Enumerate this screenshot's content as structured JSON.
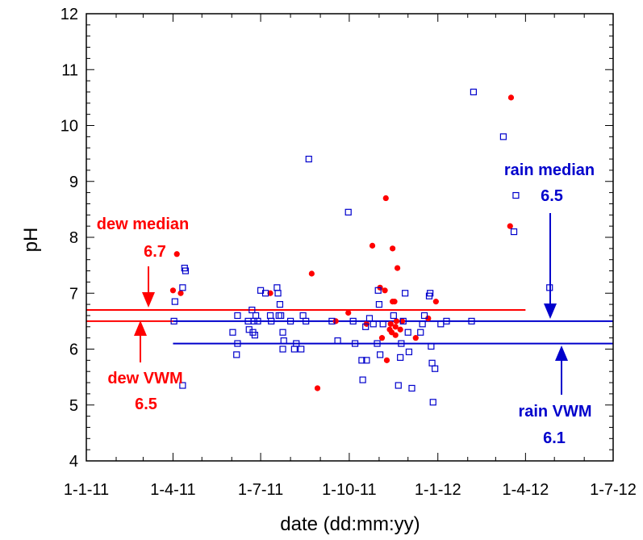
{
  "chart_data": {
    "type": "scatter",
    "xlabel": "date (dd:mm:yy)",
    "ylabel": "pH",
    "xlim": [
      "2011-01-01",
      "2012-07-01"
    ],
    "ylim": [
      4,
      12
    ],
    "x_ticks": [
      "1-1-11",
      "1-4-11",
      "1-7-11",
      "1-10-11",
      "1-1-12",
      "1-4-12",
      "1-7-12"
    ],
    "y_ticks": [
      4,
      5,
      6,
      7,
      8,
      9,
      10,
      11,
      12
    ],
    "grid": false,
    "colors": {
      "dew": "#ff0000",
      "rain": "#0000cc",
      "axis": "#000000"
    },
    "series": [
      {
        "marker": "filled-circle",
        "color": "#ff0000",
        "points": [
          [
            "2011-04-01",
            7.05
          ],
          [
            "2011-04-05",
            7.7
          ],
          [
            "2011-04-09",
            7.0
          ],
          [
            "2011-07-11",
            7.0
          ],
          [
            "2011-08-23",
            7.35
          ],
          [
            "2011-08-29",
            5.3
          ],
          [
            "2011-09-17",
            6.5
          ],
          [
            "2011-09-30",
            6.65
          ],
          [
            "2011-10-19",
            6.45
          ],
          [
            "2011-10-25",
            7.85
          ],
          [
            "2011-11-02",
            7.1
          ],
          [
            "2011-11-04",
            6.2
          ],
          [
            "2011-11-07",
            7.05
          ],
          [
            "2011-11-08",
            8.7
          ],
          [
            "2011-11-09",
            5.8
          ],
          [
            "2011-11-12",
            6.35
          ],
          [
            "2011-11-13",
            6.45
          ],
          [
            "2011-11-14",
            6.3
          ],
          [
            "2011-11-15",
            7.8
          ],
          [
            "2011-11-15",
            6.85
          ],
          [
            "2011-11-17",
            6.85
          ],
          [
            "2011-11-18",
            6.4
          ],
          [
            "2011-11-18",
            6.25
          ],
          [
            "2011-11-19",
            6.5
          ],
          [
            "2011-11-20",
            7.45
          ],
          [
            "2011-11-23",
            6.35
          ],
          [
            "2011-11-25",
            6.5
          ],
          [
            "2011-12-09",
            6.2
          ],
          [
            "2011-12-22",
            6.55
          ],
          [
            "2011-12-30",
            6.85
          ],
          [
            "2012-03-16",
            8.2
          ],
          [
            "2012-03-17",
            10.5
          ]
        ]
      },
      {
        "marker": "open-square",
        "color": "#0000cc",
        "points": [
          [
            "2011-04-02",
            6.5
          ],
          [
            "2011-04-03",
            6.85
          ],
          [
            "2011-04-11",
            7.1
          ],
          [
            "2011-04-13",
            7.45
          ],
          [
            "2011-04-14",
            7.4
          ],
          [
            "2011-04-11",
            5.35
          ],
          [
            "2011-06-02",
            6.3
          ],
          [
            "2011-06-06",
            5.9
          ],
          [
            "2011-06-07",
            6.1
          ],
          [
            "2011-06-07",
            6.6
          ],
          [
            "2011-06-18",
            6.5
          ],
          [
            "2011-06-19",
            6.35
          ],
          [
            "2011-06-22",
            6.7
          ],
          [
            "2011-06-23",
            6.3
          ],
          [
            "2011-06-24",
            6.5
          ],
          [
            "2011-06-25",
            6.25
          ],
          [
            "2011-06-26",
            6.6
          ],
          [
            "2011-06-28",
            6.5
          ],
          [
            "2011-07-01",
            7.05
          ],
          [
            "2011-07-06",
            7.0
          ],
          [
            "2011-07-11",
            6.6
          ],
          [
            "2011-07-12",
            6.5
          ],
          [
            "2011-07-18",
            7.1
          ],
          [
            "2011-07-19",
            7.0
          ],
          [
            "2011-07-20",
            6.6
          ],
          [
            "2011-07-21",
            6.8
          ],
          [
            "2011-07-22",
            6.6
          ],
          [
            "2011-07-24",
            6.3
          ],
          [
            "2011-07-25",
            6.15
          ],
          [
            "2011-07-24",
            6.0
          ],
          [
            "2011-08-01",
            6.5
          ],
          [
            "2011-08-05",
            6.0
          ],
          [
            "2011-08-07",
            6.1
          ],
          [
            "2011-08-12",
            6.0
          ],
          [
            "2011-08-14",
            6.6
          ],
          [
            "2011-08-17",
            6.5
          ],
          [
            "2011-08-20",
            9.4
          ],
          [
            "2011-09-13",
            6.5
          ],
          [
            "2011-09-19",
            6.15
          ],
          [
            "2011-09-30",
            8.45
          ],
          [
            "2011-10-05",
            6.5
          ],
          [
            "2011-10-07",
            6.1
          ],
          [
            "2011-10-14",
            5.8
          ],
          [
            "2011-10-15",
            5.45
          ],
          [
            "2011-10-18",
            6.4
          ],
          [
            "2011-10-19",
            5.8
          ],
          [
            "2011-10-22",
            6.55
          ],
          [
            "2011-10-26",
            6.45
          ],
          [
            "2011-10-30",
            6.1
          ],
          [
            "2011-10-31",
            7.05
          ],
          [
            "2011-11-01",
            6.8
          ],
          [
            "2011-11-02",
            5.9
          ],
          [
            "2011-11-05",
            6.45
          ],
          [
            "2011-11-16",
            6.6
          ],
          [
            "2011-11-21",
            5.35
          ],
          [
            "2011-11-23",
            5.85
          ],
          [
            "2011-11-24",
            6.1
          ],
          [
            "2011-11-26",
            6.5
          ],
          [
            "2011-11-28",
            7.0
          ],
          [
            "2011-12-01",
            6.3
          ],
          [
            "2011-12-02",
            5.95
          ],
          [
            "2011-12-05",
            5.3
          ],
          [
            "2011-12-14",
            6.3
          ],
          [
            "2011-12-16",
            6.45
          ],
          [
            "2011-12-18",
            6.6
          ],
          [
            "2011-12-23",
            6.95
          ],
          [
            "2011-12-24",
            7.0
          ],
          [
            "2011-12-25",
            6.05
          ],
          [
            "2011-12-26",
            5.75
          ],
          [
            "2011-12-27",
            5.05
          ],
          [
            "2011-12-29",
            5.65
          ],
          [
            "2012-01-04",
            6.45
          ],
          [
            "2012-01-10",
            6.5
          ],
          [
            "2012-02-05",
            6.5
          ],
          [
            "2012-02-07",
            10.6
          ],
          [
            "2012-03-09",
            9.8
          ],
          [
            "2012-03-20",
            8.1
          ],
          [
            "2012-03-22",
            8.75
          ],
          [
            "2012-04-26",
            7.1
          ]
        ]
      }
    ],
    "reference_lines": [
      {
        "y": 6.7,
        "x_from": "2011-01-01",
        "x_to": "2012-04-01",
        "color": "#ff0000"
      },
      {
        "y": 6.5,
        "x_from": "2011-01-01",
        "x_to": "2012-07-01",
        "color": "#ff0000",
        "right_part_color": "#0000cc"
      },
      {
        "y": 6.1,
        "x_from": "2011-04-01",
        "x_to": "2012-07-01",
        "color": "#0000cc"
      }
    ],
    "annotations": [
      {
        "id": "dew-median",
        "label": "dew median",
        "value": "6.7",
        "color": "#ff0000"
      },
      {
        "id": "dew-vwm",
        "label": "dew VWM",
        "value": "6.5",
        "color": "#ff0000"
      },
      {
        "id": "rain-median",
        "label": "rain median",
        "value": "6.5",
        "color": "#0000cc"
      },
      {
        "id": "rain-vwm",
        "label": "rain VWM",
        "value": "6.1",
        "color": "#0000cc"
      }
    ]
  }
}
